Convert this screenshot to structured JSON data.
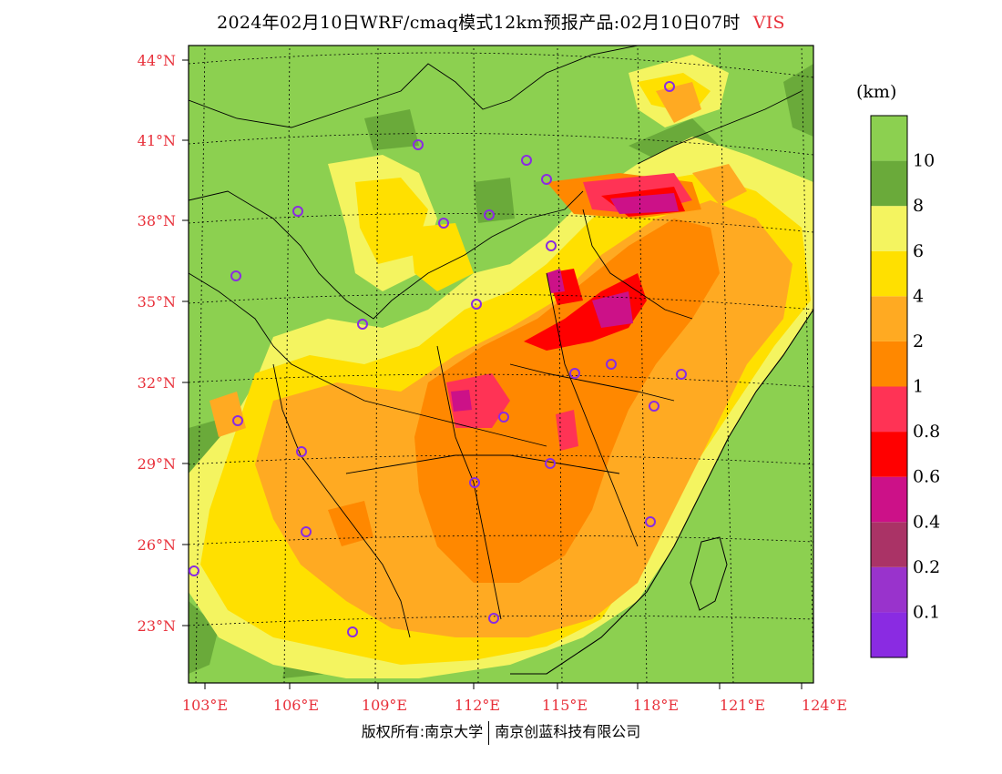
{
  "title": {
    "main": "2024年02月10日WRF/cmaq模式12km预报产品:02月10日07时",
    "variable": "VIS"
  },
  "colorbar": {
    "unit": "(km)",
    "colors": [
      "#8a2be2",
      "#9933cc",
      "#aa3366",
      "#cc1188",
      "#ff0000",
      "#ff3355",
      "#ff8800",
      "#ffaa22",
      "#ffe000",
      "#f4f460",
      "#6aaa3a",
      "#8cd050"
    ],
    "labels": [
      "0.1",
      "0.2",
      "0.4",
      "0.6",
      "0.8",
      "1",
      "2",
      "4",
      "6",
      "8",
      "10"
    ]
  },
  "axes": {
    "lon_labels": [
      "103°E",
      "106°E",
      "109°E",
      "112°E",
      "115°E",
      "118°E",
      "121°E",
      "124°E"
    ],
    "lat_labels": [
      "44°N",
      "41°N",
      "38°N",
      "35°N",
      "32°N",
      "29°N",
      "26°N",
      "23°N"
    ],
    "label_color": "#e8303a"
  },
  "stations": 25,
  "footer": {
    "left": "版权所有:南京大学",
    "right": "南京创蓝科技有限公司"
  }
}
